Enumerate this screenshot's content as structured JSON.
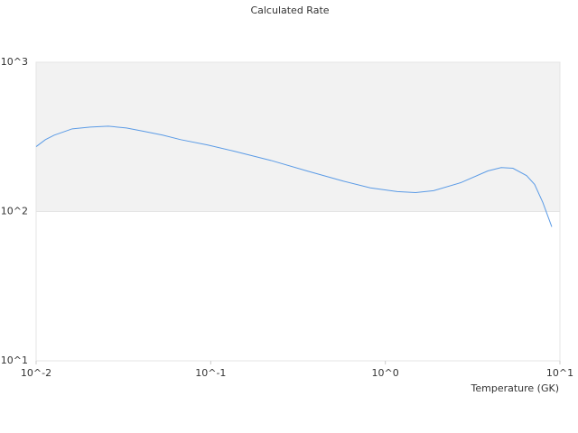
{
  "chart_data": {
    "type": "line",
    "title": "Calculated Rate",
    "x_label": "Temperature (GK)",
    "log_x": true,
    "log_y": true,
    "grid": true,
    "bands": true,
    "xlim": [
      0.01,
      10
    ],
    "ylim": [
      10,
      1000
    ],
    "xticks": [
      {
        "value": 0.01,
        "label": "10^-2"
      },
      {
        "value": 0.1,
        "label": "10^-1"
      },
      {
        "value": 1,
        "label": "10^0"
      },
      {
        "value": 10,
        "label": "10^1"
      }
    ],
    "yticks": [
      {
        "value": 10,
        "label": "10^1"
      },
      {
        "value": 100,
        "label": "10^2"
      },
      {
        "value": 1000,
        "label": "10^3"
      }
    ],
    "x": [
      0.01,
      0.0113,
      0.0127,
      0.0161,
      0.0204,
      0.0259,
      0.0329,
      0.0418,
      0.053,
      0.0673,
      0.0962,
      0.137,
      0.221,
      0.356,
      0.574,
      0.82,
      1.17,
      1.49,
      1.89,
      2.7,
      3.86,
      4.61,
      5.38,
      6.44,
      7.16,
      7.98,
      8.98
    ],
    "series": [
      {
        "color": "#5b9be6",
        "values": [
          272,
          303,
          325,
          358,
          368,
          373,
          363,
          344,
          325,
          303,
          279,
          253,
          220,
          187,
          160,
          144,
          136,
          134,
          138,
          156,
          187,
          197,
          195,
          174,
          152,
          115,
          79
        ]
      }
    ]
  }
}
